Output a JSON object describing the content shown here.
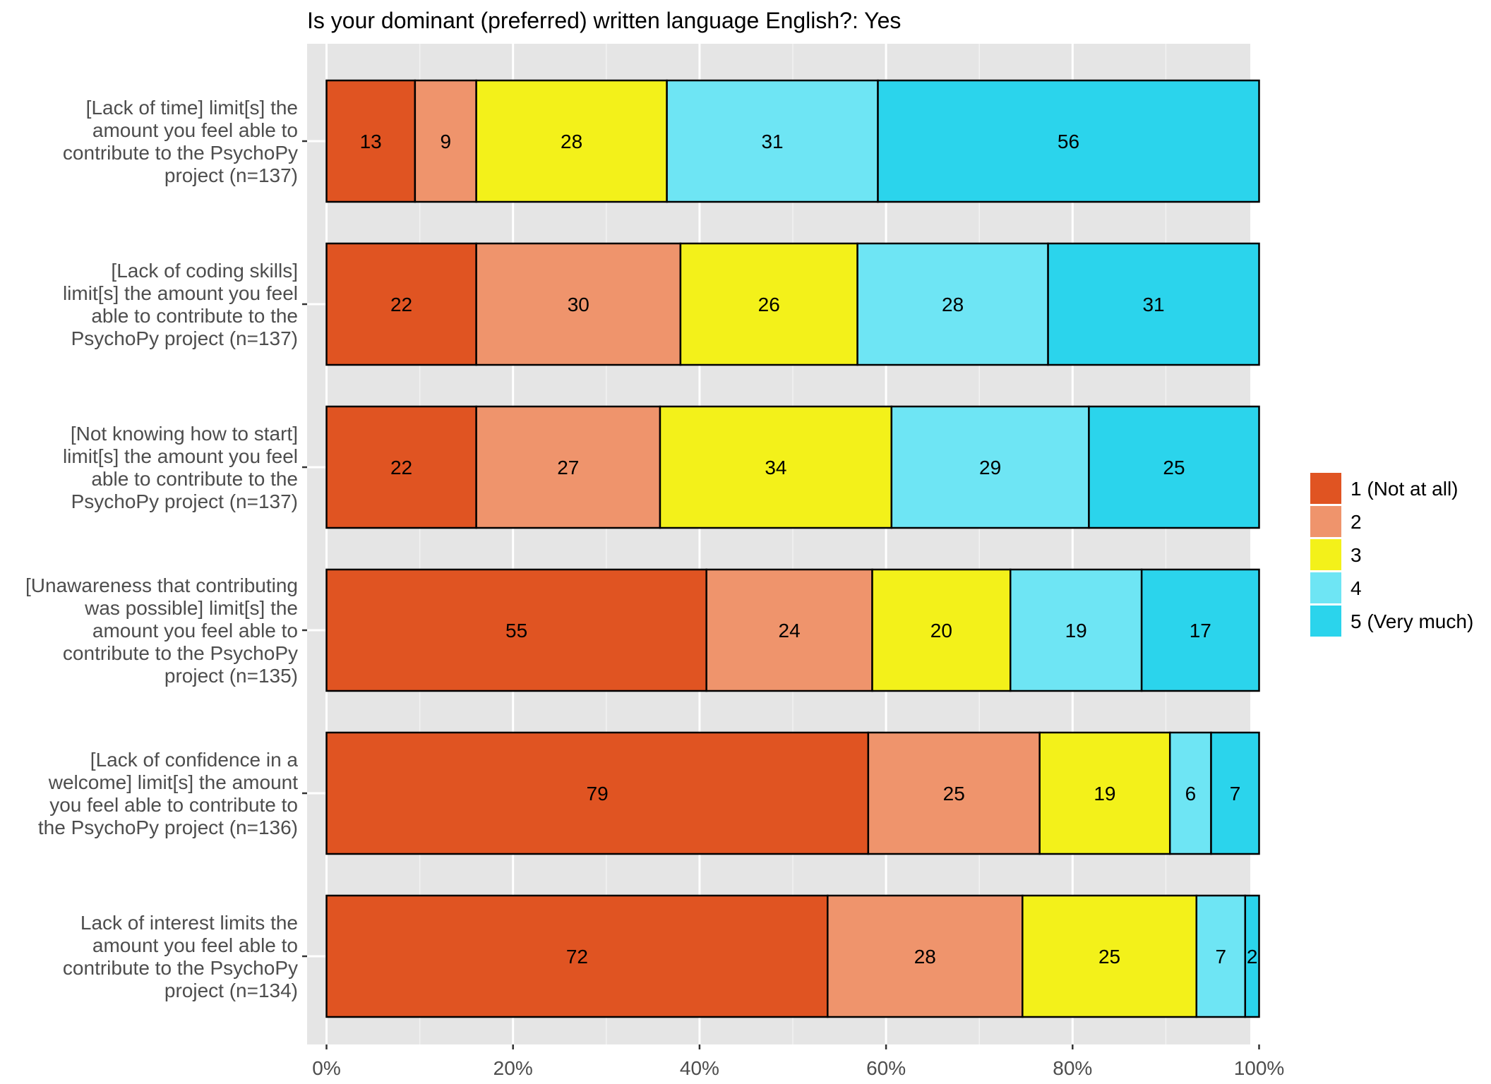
{
  "chart_data": {
    "type": "bar",
    "orientation": "horizontal",
    "stacked": "percent",
    "title": "Is your dominant (preferred) written language English?: Yes",
    "xlabel": "",
    "ylabel": "",
    "xlim": [
      0,
      100
    ],
    "x_ticks": [
      "0%",
      "20%",
      "40%",
      "60%",
      "80%",
      "100%"
    ],
    "grid": true,
    "legend_position": "right",
    "categories": [
      [
        "[Lack of time] limit[s] the",
        "amount you feel able to",
        "contribute to the PsychoPy",
        "project (n=137)"
      ],
      [
        "[Lack of coding skills]",
        "limit[s] the amount you feel",
        "able to contribute to the",
        "PsychoPy project  (n=137)"
      ],
      [
        "[Not knowing how to start]",
        "limit[s] the amount you feel",
        "able to contribute to the",
        "PsychoPy project (n=137)"
      ],
      [
        "[Unawareness that contributing",
        "was possible] limit[s] the",
        "amount you feel able to",
        "contribute to the PsychoPy",
        "project (n=135)"
      ],
      [
        "[Lack of confidence in a",
        "welcome] limit[s] the amount",
        "you feel able to contribute to",
        "the PsychoPy project (n=136)"
      ],
      [
        "Lack of interest limits the",
        "amount you feel able to",
        "contribute to the PsychoPy",
        "project (n=134)"
      ]
    ],
    "series": [
      {
        "name": "1 (Not at all)",
        "color": "#e05422",
        "values": [
          13,
          22,
          22,
          55,
          79,
          72
        ]
      },
      {
        "name": "2",
        "color": "#ef946c",
        "values": [
          9,
          30,
          27,
          24,
          25,
          28
        ]
      },
      {
        "name": "3",
        "color": "#f3f11a",
        "values": [
          28,
          26,
          34,
          20,
          19,
          25
        ]
      },
      {
        "name": "4",
        "color": "#6ee5f4",
        "values": [
          31,
          28,
          29,
          19,
          6,
          7
        ]
      },
      {
        "name": "5 (Very much)",
        "color": "#2bd4ec",
        "values": [
          56,
          31,
          25,
          17,
          7,
          2
        ]
      }
    ]
  }
}
